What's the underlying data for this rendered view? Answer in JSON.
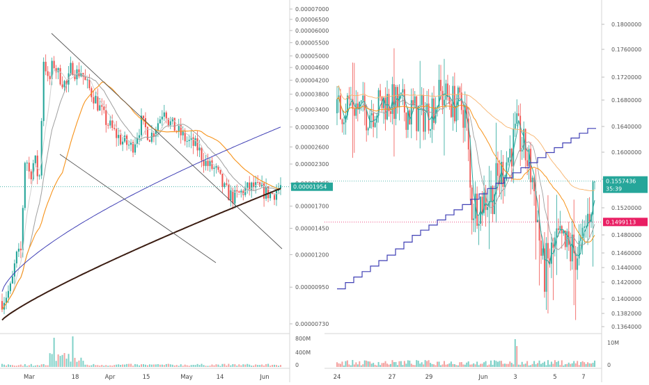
{
  "chart_data": [
    {
      "type": "candlestick",
      "title": "",
      "left_axis": false,
      "y_axis": {
        "position": "right",
        "scale": "log",
        "ticks": [
          "0.00007000",
          "0.00006500",
          "0.00006000",
          "0.00005500",
          "0.00005000",
          "0.00004600",
          "0.00004200",
          "0.00003800",
          "0.00003400",
          "0.00003000",
          "0.00002600",
          "0.00002300",
          "0.00002000",
          "0.00001700",
          "0.00001450",
          "0.00001200",
          "0.00000950",
          "0.00000730"
        ],
        "tick_values": [
          7e-05,
          6.5e-05,
          6e-05,
          5.5e-05,
          5e-05,
          4.6e-05,
          4.2e-05,
          3.8e-05,
          3.4e-05,
          3e-05,
          2.6e-05,
          2.3e-05,
          2e-05,
          1.7e-05,
          1.45e-05,
          1.2e-05,
          9.5e-06,
          7.3e-06
        ]
      },
      "x_axis": {
        "ticks": [
          "Mar",
          "18",
          "Apr",
          "15",
          "May",
          "14",
          "Jun"
        ]
      },
      "last_price": {
        "label": "0.00001954",
        "value": 1.954e-05,
        "color": "#26a69a"
      },
      "ohlc_points": [
        [
          0,
          8.6e-06
        ],
        [
          2,
          9.5e-06
        ],
        [
          3,
          1.18e-05
        ],
        [
          4,
          1.2e-05
        ],
        [
          5,
          2.5e-05
        ],
        [
          6,
          2.1e-05
        ],
        [
          7,
          2.4e-05
        ],
        [
          8,
          2e-05
        ],
        [
          9,
          5.1e-05
        ],
        [
          10,
          4e-05
        ],
        [
          11,
          4.8e-05
        ],
        [
          12,
          4.4e-05
        ],
        [
          13,
          4.2e-05
        ],
        [
          14,
          4e-05
        ],
        [
          15,
          4.7e-05
        ],
        [
          16,
          4.4e-05
        ],
        [
          17,
          4.5e-05
        ],
        [
          18,
          4.1e-05
        ],
        [
          20,
          3.7e-05
        ],
        [
          22,
          3.2e-05
        ],
        [
          24,
          2.9e-05
        ],
        [
          26,
          2.7e-05
        ],
        [
          28,
          2.6e-05
        ],
        [
          30,
          3.1e-05
        ],
        [
          32,
          2.8e-05
        ],
        [
          34,
          3.2e-05
        ],
        [
          35,
          3.5e-05
        ],
        [
          36,
          3.1e-05
        ],
        [
          38,
          2.9e-05
        ],
        [
          40,
          2.7e-05
        ],
        [
          42,
          2.6e-05
        ],
        [
          44,
          2.3e-05
        ],
        [
          46,
          2.2e-05
        ],
        [
          48,
          1.9e-05
        ],
        [
          50,
          1.8e-05
        ],
        [
          52,
          1.9e-05
        ],
        [
          54,
          1.95e-05
        ],
        [
          56,
          1.9e-05
        ],
        [
          58,
          1.85e-05
        ],
        [
          60,
          1.95e-05
        ]
      ],
      "overlays": [
        {
          "name": "MA fast",
          "color": "#d0d0d0"
        },
        {
          "name": "MA mid",
          "color": "#9e9e9e"
        },
        {
          "name": "MA orange",
          "color": "#f7931a"
        },
        {
          "name": "MA blue",
          "color": "#3f3fb5"
        },
        {
          "name": "MA dark",
          "color": "#3b1d12"
        }
      ],
      "annotations": [
        "falling wedge (two descending trendlines)"
      ],
      "volume_axis": {
        "ticks": [
          "800M",
          "400M",
          "0"
        ]
      }
    },
    {
      "type": "candlestick",
      "title": "",
      "y_axis": {
        "position": "right",
        "scale": "linear",
        "ylim": [
          0.1355,
          0.1815
        ],
        "ticks": [
          "0.1800000",
          "0.1760000",
          "0.1720000",
          "0.1680000",
          "0.1640000",
          "0.1600000",
          "0.1560000",
          "0.1520000",
          "0.1480000",
          "0.1460000",
          "0.1440000",
          "0.1420000",
          "0.1400000",
          "0.1382000",
          "0.1364000"
        ],
        "tick_values": [
          0.18,
          0.176,
          0.172,
          0.168,
          0.164,
          0.16,
          0.156,
          0.152,
          0.148,
          0.146,
          0.144,
          0.142,
          0.14,
          0.1382,
          0.1364
        ]
      },
      "x_axis": {
        "ticks": [
          "24",
          "27",
          "29",
          "Jun",
          "3",
          "5",
          "7"
        ]
      },
      "last_price": {
        "label": "0.1557436",
        "value": 0.1557436,
        "color": "#26a69a",
        "countdown": "35:39"
      },
      "marked_level": {
        "label": "0.1499113",
        "value": 0.1499113,
        "color": "#e91e63"
      },
      "overlays": [
        {
          "name": "MA fast",
          "color": "#26a69a"
        },
        {
          "name": "MA mid",
          "color": "#9e9e9e"
        },
        {
          "name": "MA orange",
          "color": "#f7931a"
        },
        {
          "name": "MA blue stepped",
          "color": "#3f3fb5"
        }
      ],
      "volume_axis": {
        "ticks": [
          "10M",
          "0"
        ]
      }
    }
  ]
}
